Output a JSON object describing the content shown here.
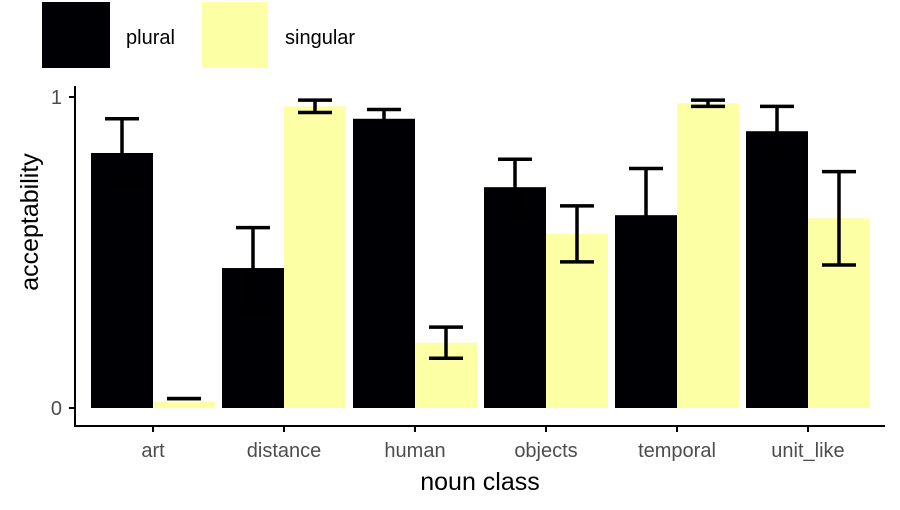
{
  "chart_data": {
    "type": "bar",
    "title": "",
    "xlabel": "noun class",
    "ylabel": "acceptability",
    "categories": [
      "art",
      "distance",
      "human",
      "objects",
      "temporal",
      "unit_like"
    ],
    "ylim": [
      0,
      1
    ],
    "yticks": [
      "0",
      "1"
    ],
    "grid": false,
    "legend_position": "top-left",
    "series": [
      {
        "name": "plural",
        "color": "#000004",
        "values": [
          0.82,
          0.45,
          0.93,
          0.71,
          0.62,
          0.89
        ],
        "error_low": [
          0.74,
          0.33,
          0.9,
          0.63,
          0.49,
          0.82
        ],
        "error_high": [
          0.93,
          0.58,
          0.96,
          0.8,
          0.77,
          0.97
        ]
      },
      {
        "name": "singular",
        "color": "#FCFFA4",
        "values": [
          0.02,
          0.97,
          0.21,
          0.56,
          0.98,
          0.61
        ],
        "error_low": [
          0.03,
          0.95,
          0.16,
          0.47,
          0.97,
          0.46
        ],
        "error_high": [
          0.03,
          0.99,
          0.26,
          0.65,
          0.99,
          0.76
        ]
      }
    ]
  }
}
